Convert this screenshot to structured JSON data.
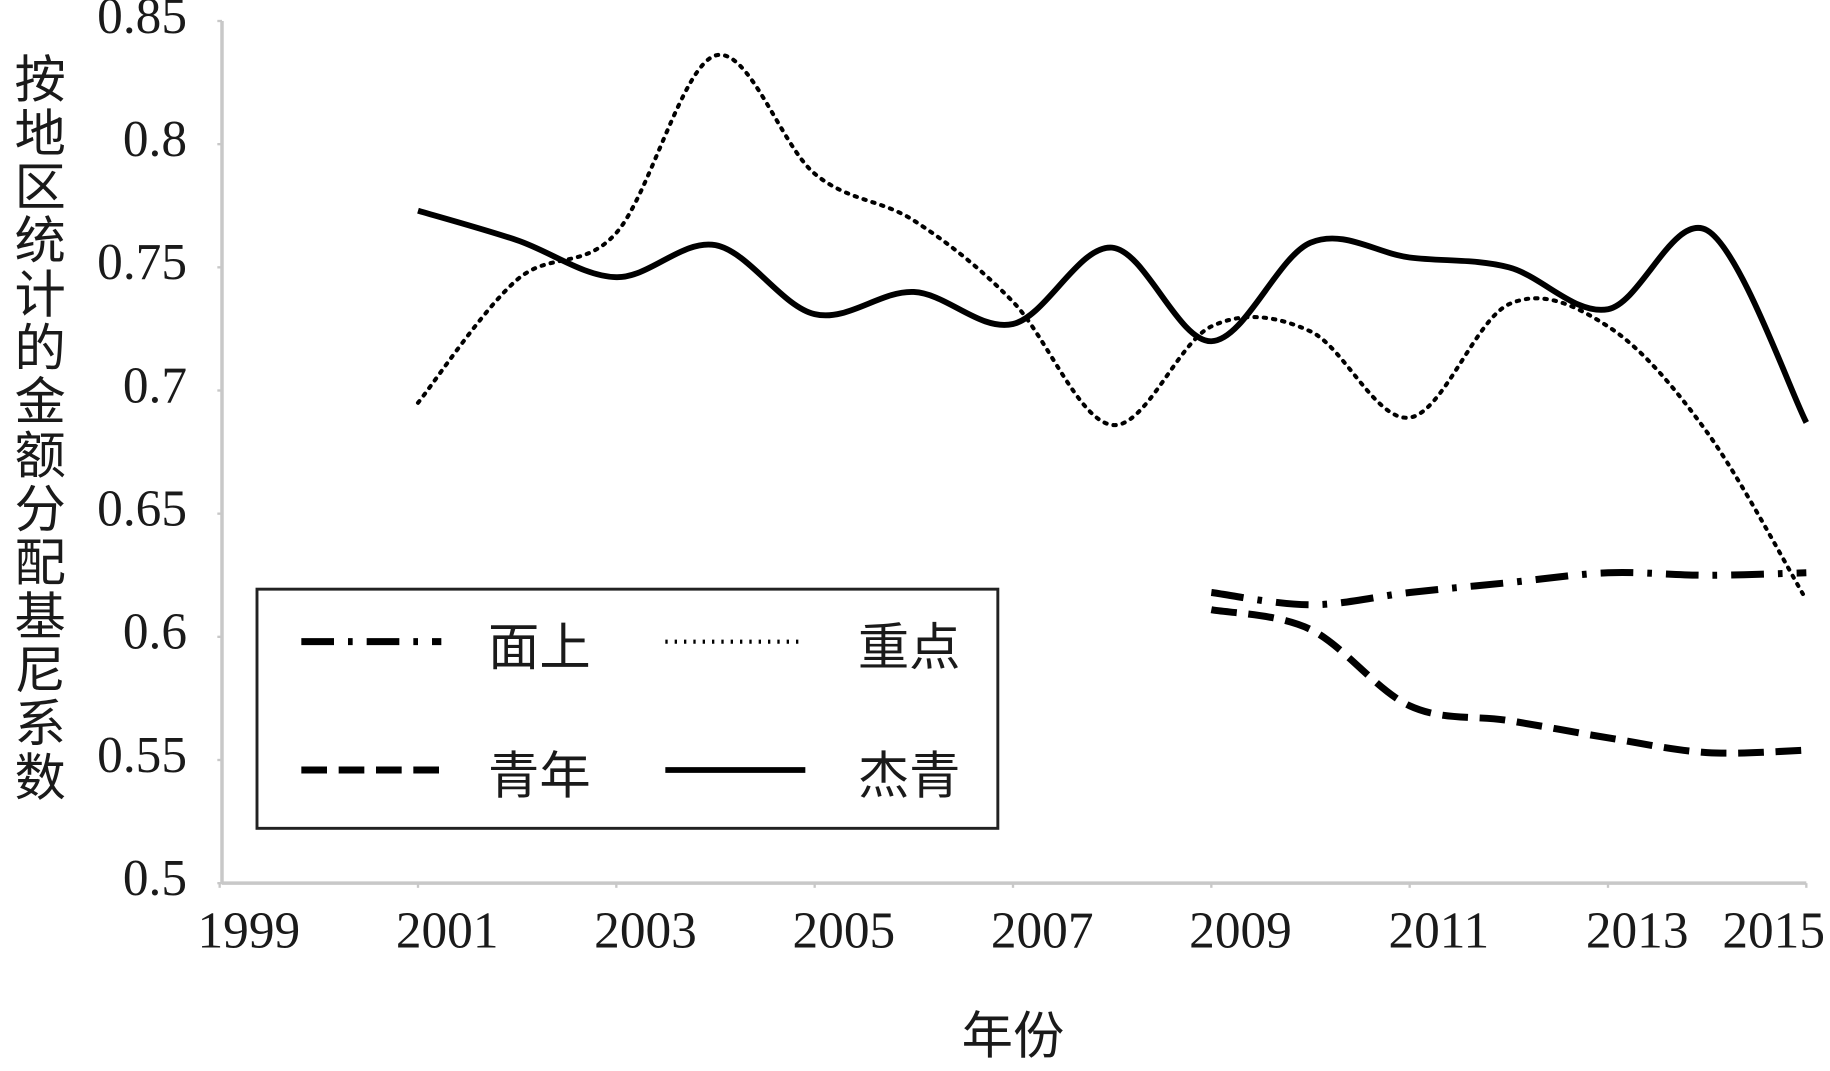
{
  "chart_data": {
    "type": "line",
    "x": [
      2001,
      2002,
      2003,
      2004,
      2005,
      2006,
      2007,
      2008,
      2009,
      2010,
      2011,
      2012,
      2013,
      2014,
      2015
    ],
    "series": [
      {
        "name": "面上",
        "color": "#000000",
        "line_style": "dashdot",
        "values": [
          null,
          null,
          null,
          null,
          null,
          null,
          null,
          null,
          0.618,
          0.613,
          0.618,
          0.622,
          0.626,
          0.625,
          0.626
        ]
      },
      {
        "name": "重点",
        "color": "#000000",
        "line_style": "dotted",
        "values": [
          0.695,
          0.745,
          0.764,
          0.836,
          0.788,
          0.769,
          0.736,
          0.686,
          0.726,
          0.724,
          0.689,
          0.735,
          0.726,
          0.683,
          0.615
        ]
      },
      {
        "name": "青年",
        "color": "#000000",
        "line_style": "dashed",
        "values": [
          null,
          null,
          null,
          null,
          null,
          null,
          null,
          null,
          0.611,
          0.603,
          0.572,
          0.566,
          0.559,
          0.553,
          0.554
        ]
      },
      {
        "name": "杰青",
        "color": "#000000",
        "line_style": "solid",
        "values": [
          0.773,
          0.761,
          0.746,
          0.759,
          0.731,
          0.74,
          0.727,
          0.758,
          0.72,
          0.76,
          0.754,
          0.75,
          0.733,
          0.765,
          0.687
        ]
      }
    ],
    "xlim": [
      1999,
      2015
    ],
    "xticks": [
      1999,
      2001,
      2003,
      2005,
      2007,
      2009,
      2011,
      2013,
      2015
    ],
    "ylim": [
      0.5,
      0.85
    ],
    "yticks": [
      0.5,
      0.55,
      0.6,
      0.65,
      0.7,
      0.75,
      0.8,
      0.85
    ],
    "x_label": "年份",
    "y_label": "按地区统计的金额分配基尼系数",
    "smooth": true,
    "grid": false,
    "legend": "lower left"
  }
}
